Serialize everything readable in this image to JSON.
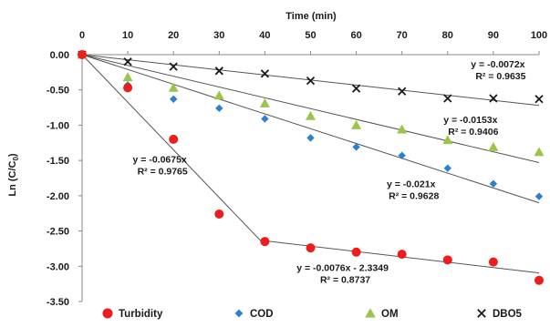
{
  "chart_data": {
    "type": "scatter",
    "title": "",
    "xlabel": "Time (min)",
    "ylabel": "Ln (C/C",
    "ylabel_sub": "0",
    "ylabel_close": ")",
    "xlim": [
      0,
      100
    ],
    "ylim": [
      -3.5,
      0
    ],
    "x_ticks": [
      0,
      10,
      20,
      30,
      40,
      50,
      60,
      70,
      80,
      90,
      100
    ],
    "y_ticks": [
      0,
      -0.5,
      -1,
      -1.5,
      -2,
      -2.5,
      -3,
      -3.5
    ],
    "y_tick_labels": [
      "0.00",
      "-0.50",
      "-1.00",
      "-1.50",
      "-2.00",
      "-2.50",
      "-3.00",
      "-3.50"
    ],
    "x_axis_position": "top",
    "grid": false,
    "legend_position": "bottom",
    "series": [
      {
        "name": "Turbidity",
        "marker": "circle",
        "color": "#ee1c1c",
        "x": [
          0,
          10,
          20,
          30,
          40,
          50,
          60,
          70,
          80,
          90,
          100
        ],
        "y": [
          0,
          -0.47,
          -1.2,
          -2.26,
          -2.65,
          -2.74,
          -2.8,
          -2.83,
          -2.91,
          -2.94,
          -3.2
        ],
        "trendlines": [
          {
            "from": 0,
            "to": 40,
            "slope": -0.0675,
            "intercept": 0
          },
          {
            "from": 40,
            "to": 100,
            "slope": -0.0076,
            "intercept": -2.3349
          }
        ]
      },
      {
        "name": "COD",
        "marker": "diamond",
        "color": "#2e7fce",
        "x": [
          0,
          10,
          20,
          30,
          40,
          50,
          60,
          70,
          80,
          90,
          100
        ],
        "y": [
          0,
          -0.43,
          -0.63,
          -0.76,
          -0.91,
          -1.18,
          -1.31,
          -1.43,
          -1.61,
          -1.83,
          -2.01
        ],
        "trendlines": [
          {
            "from": 0,
            "to": 100,
            "slope": -0.021,
            "intercept": 0
          }
        ]
      },
      {
        "name": "OM",
        "marker": "triangle",
        "color": "#9bc54a",
        "x": [
          0,
          10,
          20,
          30,
          40,
          50,
          60,
          70,
          80,
          90,
          100
        ],
        "y": [
          0,
          -0.32,
          -0.47,
          -0.58,
          -0.69,
          -0.87,
          -1.0,
          -1.06,
          -1.21,
          -1.31,
          -1.38
        ],
        "trendlines": [
          {
            "from": 0,
            "to": 100,
            "slope": -0.0153,
            "intercept": 0
          }
        ]
      },
      {
        "name": "DBO5",
        "marker": "cross",
        "color": "#1a1a1a",
        "x": [
          0,
          10,
          20,
          30,
          40,
          50,
          60,
          70,
          80,
          90,
          100
        ],
        "y": [
          0,
          -0.1,
          -0.17,
          -0.23,
          -0.27,
          -0.37,
          -0.48,
          -0.52,
          -0.62,
          -0.62,
          -0.63
        ],
        "trendlines": [
          {
            "from": 0,
            "to": 100,
            "slope": -0.0072,
            "intercept": 0
          }
        ]
      }
    ],
    "annotations": [
      {
        "lines": [
          "y = -0.0072x",
          "R² = 0.9635"
        ],
        "anchor_x": 91,
        "anchor_y": -0.18
      },
      {
        "lines": [
          "y = -0.0153x",
          "R² = 0.9406"
        ],
        "anchor_x": 85,
        "anchor_y": -0.97
      },
      {
        "lines": [
          "y = -0.021x",
          "R² = 0.9628"
        ],
        "anchor_x": 72,
        "anchor_y": -1.88
      },
      {
        "lines": [
          "y = -0.0675x",
          "R² = 0.9765"
        ],
        "anchor_x": 17,
        "anchor_y": -1.53
      },
      {
        "lines": [
          "y = -0.0076x - 2.3349",
          "R² = 0.8737"
        ],
        "anchor_x": 57,
        "anchor_y": -3.07
      }
    ]
  }
}
